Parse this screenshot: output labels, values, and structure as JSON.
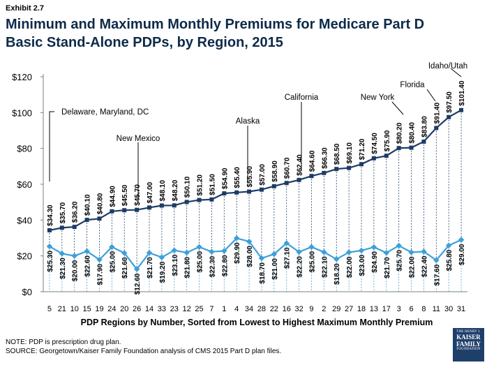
{
  "exhibit": "Exhibit 2.7",
  "title_line1": "Minimum and Maximum Monthly Premiums for Medicare Part D",
  "title_line2": "Basic Stand-Alone PDPs, by Region, 2015",
  "footer_note1": "NOTE: PDP is prescription drug plan.",
  "footer_note2": "SOURCE: Georgetown/Kaiser Family Foundation analysis of CMS 2015 Part D plan files.",
  "logo": {
    "l1": "THE HENRY J.",
    "l2a": "KAISER",
    "l2b": "FAMILY",
    "l3": "FOUNDATION"
  },
  "colors": {
    "max_line": "#1c3b66",
    "min_line": "#3ea0d8",
    "title": "#0d2a4a"
  },
  "chart_data": {
    "type": "line",
    "xlabel": "PDP Regions by Number, Sorted from Lowest to Highest Maximum Monthly Premium",
    "ylabel": "",
    "ylim": [
      0,
      120
    ],
    "yticks": [
      "$0",
      "$20",
      "$40",
      "$60",
      "$80",
      "$100",
      "$120"
    ],
    "categories": [
      "5",
      "21",
      "10",
      "15",
      "19",
      "24",
      "20",
      "26",
      "14",
      "33",
      "23",
      "12",
      "25",
      "7",
      "1",
      "4",
      "34",
      "28",
      "22",
      "16",
      "32",
      "9",
      "2",
      "29",
      "27",
      "18",
      "13",
      "17",
      "3",
      "6",
      "8",
      "11",
      "30",
      "31"
    ],
    "series": [
      {
        "name": "",
        "values": [
          34.3,
          35.7,
          36.2,
          40.1,
          40.8,
          44.9,
          45.5,
          45.7,
          47.0,
          48.1,
          48.2,
          50.1,
          51.2,
          51.5,
          54.9,
          55.4,
          55.9,
          57.0,
          58.9,
          60.7,
          62.4,
          64.6,
          66.3,
          68.5,
          69.1,
          71.2,
          74.5,
          75.9,
          80.2,
          80.4,
          83.8,
          91.4,
          97.5,
          101.4
        ],
        "labels": [
          "$34.30",
          "$35.70",
          "$36.20",
          "$40.10",
          "$40.80",
          "$44.90",
          "$45.50",
          "$45.70",
          "$47.00",
          "$48.10",
          "$48.20",
          "$50.10",
          "$51.20",
          "$51.50",
          "$54.90",
          "$55.40",
          "$55.90",
          "$57.00",
          "$58.90",
          "$60.70",
          "$62.40",
          "$64.60",
          "$66.30",
          "$68.50",
          "$69.10",
          "$71.20",
          "$74.50",
          "$75.90",
          "$80.20",
          "$80.40",
          "$83.80",
          "$91.40",
          "$97.50",
          "$101.40"
        ]
      },
      {
        "name": "",
        "values": [
          25.3,
          21.3,
          20.0,
          22.6,
          17.9,
          25.0,
          21.6,
          12.6,
          21.7,
          19.2,
          23.1,
          21.8,
          25.0,
          22.3,
          22.8,
          29.9,
          28.0,
          18.7,
          21.0,
          27.1,
          22.2,
          25.0,
          22.1,
          18.2,
          22.0,
          23.0,
          24.9,
          21.7,
          25.7,
          22.0,
          22.4,
          17.6,
          25.8,
          29.0
        ],
        "labels": [
          "$25.30",
          "$21.30",
          "$20.00",
          "$22.60",
          "$17.90",
          "$25.00",
          "$21.60",
          "$12.60",
          "$21.70",
          "$19.20",
          "$23.10",
          "$21.80",
          "$25.00",
          "$22.30",
          "$22.80",
          "$29.90",
          "$28.00",
          "$18.70",
          "$21.00",
          "$27.10",
          "$22.20",
          "$25.00",
          "$22.10",
          "$18.20",
          "$22.00",
          "$23.00",
          "$24.90",
          "$21.70",
          "$25.70",
          "$22.00",
          "$22.40",
          "$17.60",
          "$25.80",
          "$29.00"
        ]
      }
    ],
    "annotations": [
      {
        "text": "Delaware, Maryland, DC",
        "index": 0
      },
      {
        "text": "New Mexico",
        "index": 7
      },
      {
        "text": "Alaska",
        "index": 15
      },
      {
        "text": "California",
        "index": 20
      },
      {
        "text": "New York",
        "index": 28
      },
      {
        "text": "Florida",
        "index": 31
      },
      {
        "text": "Idaho/Utah",
        "index": 33
      }
    ],
    "grid": false,
    "legend": "none"
  }
}
